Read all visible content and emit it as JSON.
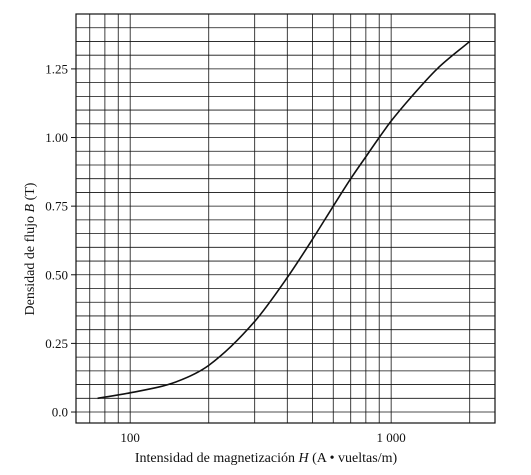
{
  "chart_data": {
    "type": "line",
    "title": "",
    "xlabel": "Intensidad de magnetización H (A • vueltas/m)",
    "xlabel_parts": {
      "prefix": "Intensidad de magnetización ",
      "var": "H",
      "suffix": " (A • vueltas/m)"
    },
    "ylabel": "Densidad de flujo B (T)",
    "ylabel_parts": {
      "prefix": "Densidad de flujo ",
      "var": "B",
      "suffix": " (T)"
    },
    "x_scale": "log",
    "xlim": [
      62,
      2500
    ],
    "ylim": [
      -0.04,
      1.45
    ],
    "x_ticks": [
      100,
      1000
    ],
    "x_tick_labels": [
      "100",
      "1 000"
    ],
    "x_gridlines": [
      70,
      80,
      90,
      100,
      200,
      300,
      400,
      500,
      600,
      700,
      800,
      900,
      1000,
      2000
    ],
    "y_ticks": [
      0.0,
      0.25,
      0.5,
      0.75,
      1.0,
      1.25
    ],
    "y_tick_labels": [
      "0.0",
      "0.25",
      "0.50",
      "0.75",
      "1.00",
      "1.25"
    ],
    "y_grid_step": 0.05,
    "grid": true,
    "series": [
      {
        "x": [
          75,
          100,
          150,
          200,
          300,
          400,
          500,
          600,
          700,
          800,
          900,
          1000,
          1200,
          1500,
          2000
        ],
        "y": [
          0.05,
          0.07,
          0.11,
          0.17,
          0.33,
          0.49,
          0.63,
          0.75,
          0.85,
          0.93,
          1.0,
          1.06,
          1.15,
          1.25,
          1.35
        ]
      }
    ],
    "colors": {
      "line": "#111111",
      "grid": "#111111",
      "frame": "#111111"
    }
  }
}
